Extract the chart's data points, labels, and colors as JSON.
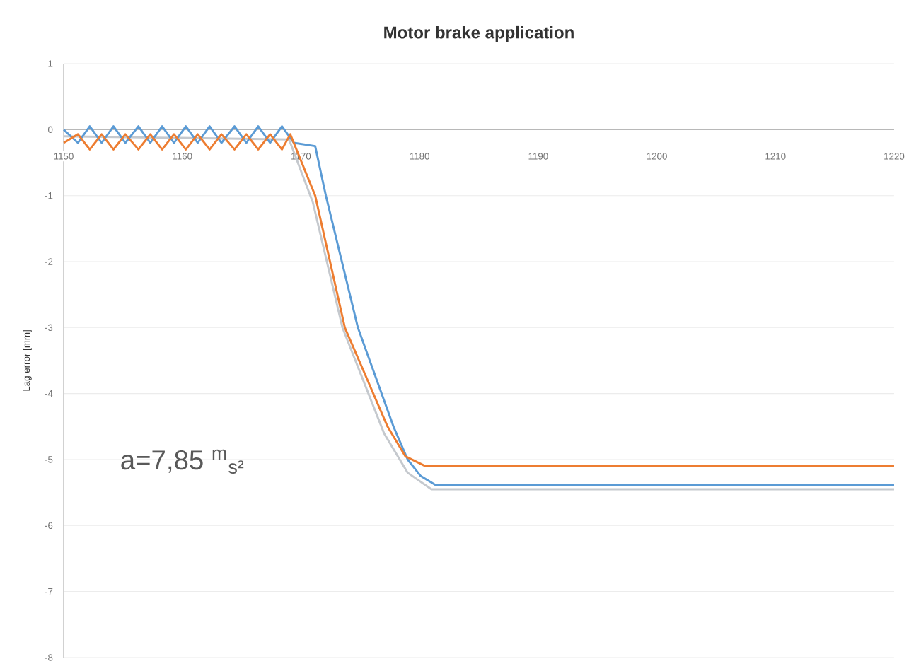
{
  "chart_data": {
    "type": "line",
    "title": "Motor brake application",
    "ylabel": "Lag error [mm]",
    "xlim": [
      1150,
      1220
    ],
    "xticks": [
      1150,
      1160,
      1170,
      1180,
      1190,
      1200,
      1210,
      1220
    ],
    "ylim": [
      -8,
      1
    ],
    "yticks": [
      -8,
      -7,
      -6,
      -5,
      -4,
      -3,
      -2,
      -1,
      0,
      1
    ],
    "grid": "y",
    "annotations": [
      "a=7,85 $^{m}$$_{s²}$"
    ],
    "series": [
      {
        "color": "#c5c9ce",
        "x": [
          1150,
          1169,
          1171,
          1173.5,
          1177,
          1179,
          1181,
          1220
        ],
        "values": [
          -0.1,
          -0.15,
          -1.1,
          -3,
          -4.6,
          -5.2,
          -5.45,
          -5.45
        ]
      },
      {
        "color": "#5b9bd5",
        "x": [
          1150,
          1151.2,
          1152.2,
          1153.2,
          1154.2,
          1155.2,
          1156.3,
          1157.3,
          1158.3,
          1159.3,
          1160.3,
          1161.3,
          1162.3,
          1163.3,
          1164.4,
          1165.4,
          1166.4,
          1167.4,
          1168.4,
          1169.4,
          1171.2,
          1172.1,
          1174.8,
          1177.8,
          1179,
          1180.1,
          1181.3,
          1220
        ],
        "values": [
          0,
          -0.2,
          0.05,
          -0.2,
          0.05,
          -0.2,
          0.05,
          -0.2,
          0.05,
          -0.2,
          0.05,
          -0.2,
          0.05,
          -0.2,
          0.05,
          -0.2,
          0.05,
          -0.2,
          0.05,
          -0.2,
          -0.25,
          -1,
          -3,
          -4.5,
          -5,
          -5.25,
          -5.38,
          -5.38
        ]
      },
      {
        "color": "#ed7d31",
        "x": [
          1150,
          1151.2,
          1152.2,
          1153.2,
          1154.2,
          1155.2,
          1156.3,
          1157.3,
          1158.3,
          1159.3,
          1160.3,
          1161.3,
          1162.3,
          1163.3,
          1164.4,
          1165.4,
          1166.4,
          1167.4,
          1168.4,
          1169.1,
          1171.2,
          1173.7,
          1177.3,
          1178.8,
          1180.5,
          1220
        ],
        "values": [
          -0.2,
          -0.07,
          -0.3,
          -0.07,
          -0.3,
          -0.07,
          -0.3,
          -0.07,
          -0.3,
          -0.07,
          -0.3,
          -0.07,
          -0.3,
          -0.07,
          -0.3,
          -0.07,
          -0.3,
          -0.07,
          -0.3,
          -0.07,
          -1,
          -3,
          -4.5,
          -4.95,
          -5.1,
          -5.1
        ]
      }
    ]
  }
}
